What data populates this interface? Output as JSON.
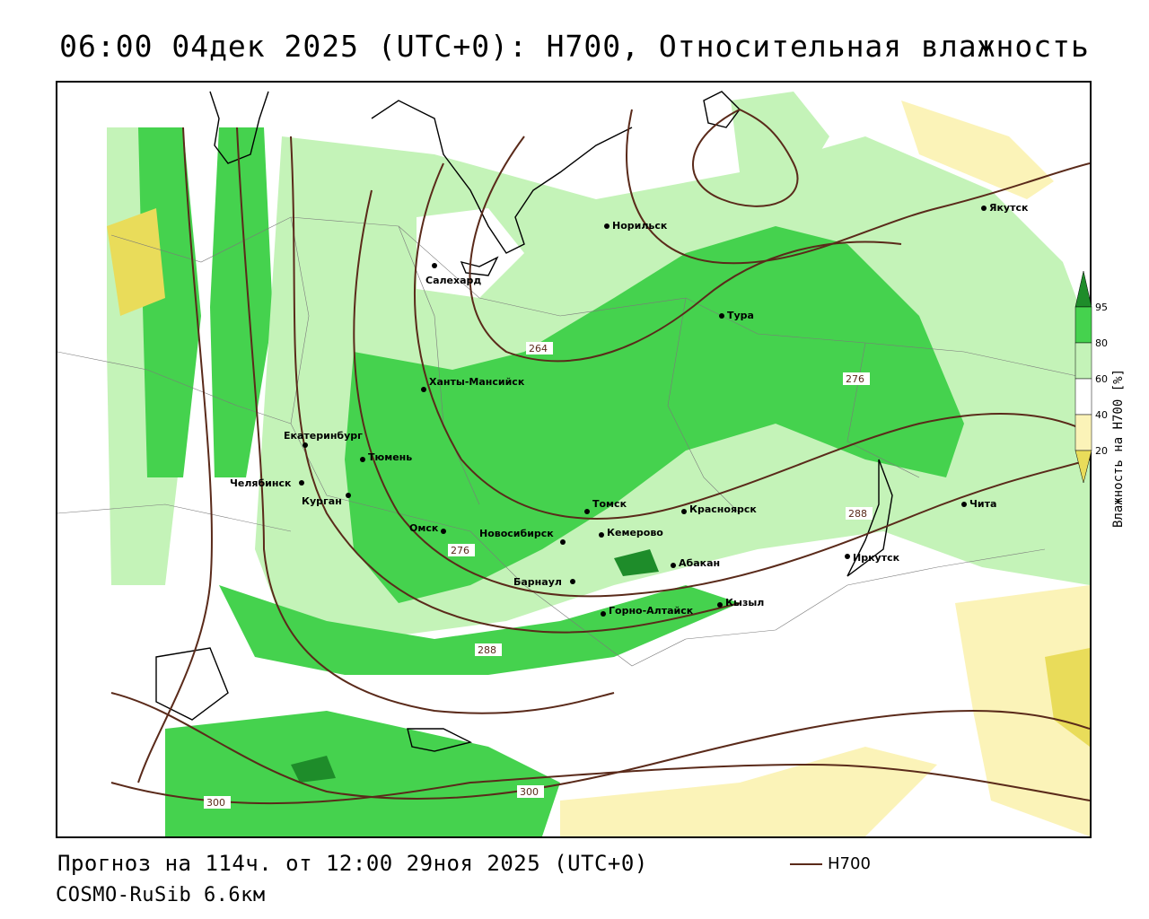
{
  "title": "06:00 04дек 2025 (UTC+0): H700, Относительная влажность",
  "footer": {
    "forecast": "Прогноз на 114ч. от 12:00 29ноя 2025 (UTC+0)",
    "model": "COSMO-RuSib 6.6км"
  },
  "line_legend": {
    "label": "H700",
    "color": "#5a2a1a"
  },
  "colorbar": {
    "title": "Влажность на H700 [%]",
    "ticks": [
      "95",
      "80",
      "60",
      "40",
      "20"
    ],
    "colors": {
      "c95": "#1e8c2a",
      "c80": "#45d24e",
      "c60": "#c4f3b8",
      "c40": "#ffffff",
      "c20": "#fbf3b8",
      "c10": "#e9dc5a"
    }
  },
  "cities": [
    {
      "name": "Норильск"
    },
    {
      "name": "Якутск"
    },
    {
      "name": "Салехард"
    },
    {
      "name": "Тура"
    },
    {
      "name": "Ханты-Мансийск"
    },
    {
      "name": "Екатеринбург"
    },
    {
      "name": "Тюмень"
    },
    {
      "name": "Челябинск"
    },
    {
      "name": "Курган"
    },
    {
      "name": "Омск"
    },
    {
      "name": "Новосибирск"
    },
    {
      "name": "Томск"
    },
    {
      "name": "Кемерово"
    },
    {
      "name": "Красноярск"
    },
    {
      "name": "Абакан"
    },
    {
      "name": "Барнаул"
    },
    {
      "name": "Горно-Алтайск"
    },
    {
      "name": "Кызыл"
    },
    {
      "name": "Иркутск"
    },
    {
      "name": "Чита"
    }
  ],
  "isolines": [
    "264",
    "276",
    "276",
    "288",
    "288",
    "300",
    "300"
  ]
}
